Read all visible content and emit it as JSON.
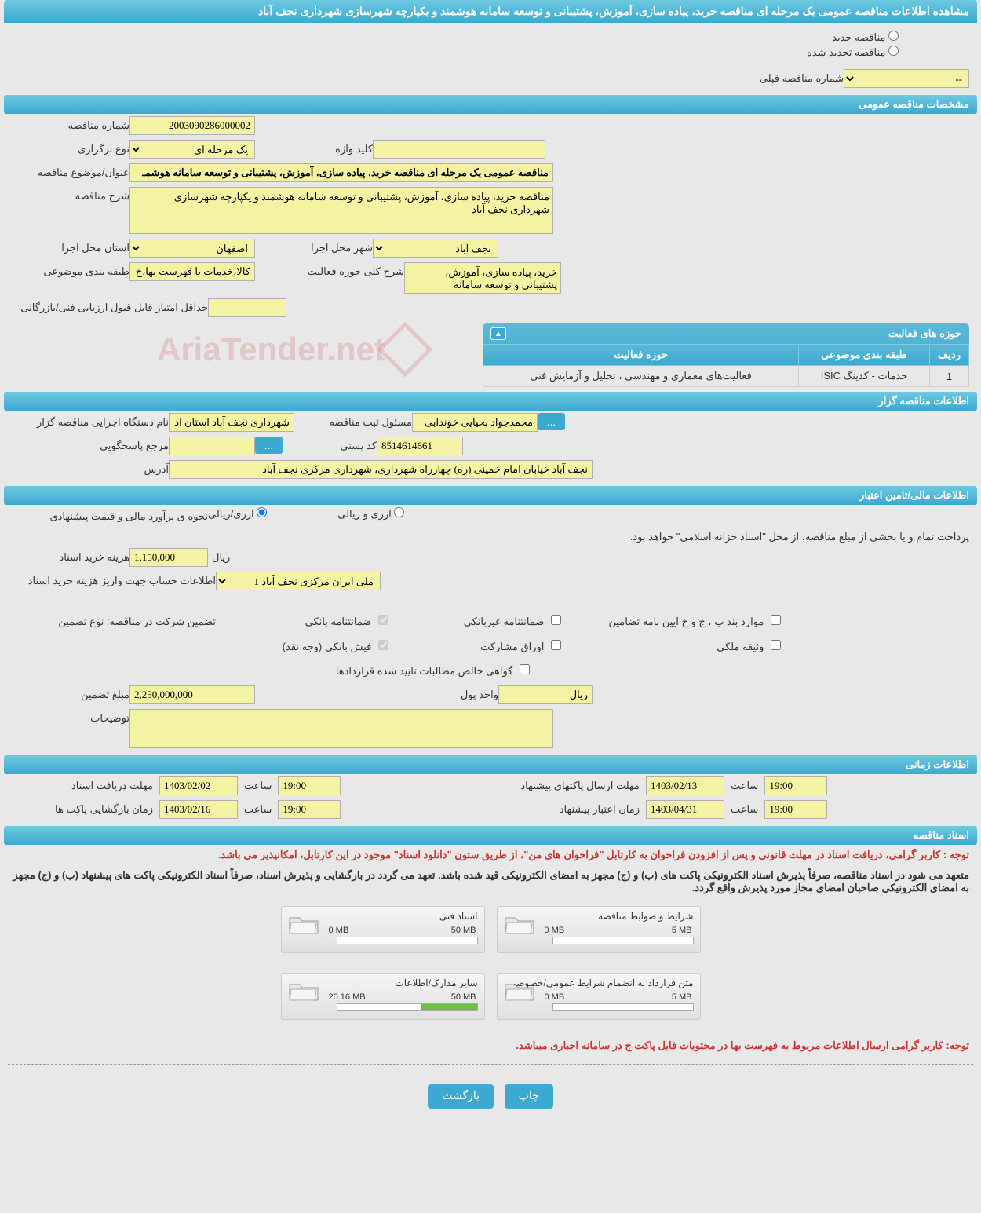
{
  "page_title": "مشاهده اطلاعات مناقصه عمومی یک مرحله ای مناقصه خرید، پیاده سازی، آموزش، پشتیبانی و توسعه سامانه هوشمند و یکپارچه شهرسازی شهرداری نجف آباد",
  "radios": {
    "new_tender": "مناقصه جدید",
    "renewed_tender": "مناقصه تجدید شده",
    "prev_number_label": "شماره مناقصه قبلی",
    "prev_number_value": "--"
  },
  "sec_general": "مشخصات مناقصه عمومی",
  "general": {
    "number_label": "شماره مناقصه",
    "number_value": "2003090286000002",
    "type_label": "نوع برگزاری",
    "type_value": "یک مرحله ای",
    "keyword_label": "کلید واژه",
    "keyword_value": "",
    "title_label": "عنوان/موضوع مناقصه",
    "title_value": "مناقصه عمومی یک مرحله ای مناقصه خرید، پیاده سازی، آموزش، پشتیبانی و توسعه سامانه هوشمـ",
    "desc_label": "شرح مناقصه",
    "desc_value": "مناقصه خرید، پیاده سازی، آموزش، پشتیبانی و توسعه سامانه هوشمند و یکپارچه شهرسازی شهرداری نجف آباد",
    "province_label": "استان محل اجرا",
    "province_value": "اصفهان",
    "city_label": "شهر محل اجرا",
    "city_value": "نجف آباد",
    "subject_class_label": "طبقه بندی موضوعی",
    "subject_class_value": "کالا،خدمات با فهرست بها،خ",
    "activity_desc_label": "شرح کلی حوزه فعالیت",
    "activity_desc_value": "خرید، پیاده سازی، آموزش، پشتیبانی و توسعه سامانه",
    "min_score_label": "حداقل امتیاز قابل قبول ارزیابی فنی/بازرگانی",
    "min_score_value": ""
  },
  "activities": {
    "header": "حوزه های فعالیت",
    "cols": {
      "row": "ردیف",
      "class": "طبقه بندی موضوعی",
      "area": "حوزه فعالیت"
    },
    "rows": [
      {
        "n": "1",
        "class": "خدمات - کدینگ ISIC",
        "area": "فعالیت‌های معماری و مهندسی ، تحلیل و آزمایش فنی"
      }
    ]
  },
  "sec_org": "اطلاعات مناقصه گزار",
  "org": {
    "org_label": "نام دستگاه اجرایی مناقصه گزار",
    "org_value": "شهرداری نجف آباد استان اد",
    "reg_officer_label": "مسئول ثبت مناقصه",
    "reg_officer_value": "محمدجواد بحیایی خوندابی",
    "phone_label": "مرجع پاسخگویی",
    "phone_value": "",
    "postal_label": "کد پستی",
    "postal_value": "8514614661",
    "address_label": "آدرس",
    "address_value": "نجف آباد خیابان امام خمینی (ره) چهارراه شهرداری، شهرداری مرکزی نجف آباد"
  },
  "sec_finance": "اطلاعات مالی/تامین اعتبار",
  "finance": {
    "estimate_label": "نحوه ی برآورد مالی و قیمت پیشنهادی",
    "opt_rial": "ارزی/ریالی",
    "opt_both": "ارزی و ریالی",
    "payment_note": "پرداخت تمام و یا بخشی از مبلغ مناقصه، از محل \"اسناد خزانه اسلامی\" خواهد بود.",
    "doc_fee_label": "هزینه خرید اسناد",
    "doc_fee_value": "1,150,000",
    "unit_rial": "ریال",
    "account_label": "اطلاعات حساب جهت واریز هزینه خرید اسناد",
    "account_value": "ملی ایران مرکزی نجف آباد 1",
    "guarantee_type_label": "تضمین شرکت در مناقصه:    نوع تضمین",
    "g1": "ضمانتنامه بانکی",
    "g2": "ضمانتنامه غیربانکی",
    "g3": "موارد بند ب ، ج و خ آیین نامه تضامین",
    "g4": "فیش بانکی (وجه نقد)",
    "g5": "اوراق مشارکت",
    "g6": "وثیقه ملکی",
    "g7": "گواهی خالص مطالبات تایید شده قراردادها",
    "guarantee_amount_label": "مبلغ تضمین",
    "guarantee_amount_value": "2,250,000,000",
    "currency_label": "واحد پول",
    "currency_value": "ریال",
    "notes_label": "توضیحات",
    "notes_value": ""
  },
  "sec_time": "اطلاعات زمانی",
  "time": {
    "time_label": "ساعت",
    "r1_label": "مهلت دریافت اسناد",
    "r1_date": "1403/02/02",
    "r1_time": "19:00",
    "r2_label": "مهلت ارسال پاکتهای پیشنهاد",
    "r2_date": "1403/02/13",
    "r2_time": "19:00",
    "r3_label": "زمان بازگشایی پاکت ها",
    "r3_date": "1403/02/16",
    "r3_time": "19:00",
    "r4_label": "زمان اعتبار پیشنهاد",
    "r4_date": "1403/04/31",
    "r4_time": "19:00"
  },
  "sec_docs": "اسناد مناقصه",
  "docs": {
    "note1": "توجه : کاربر گرامی، دریافت اسناد در مهلت قانونی و پس از افزودن فراخوان به کارتابل \"فراخوان های من\"، از طریق ستون \"دانلود اسناد\" موجود در این کارتابل، امکانپذیر می باشد.",
    "note2": "متعهد می شود در اسناد مناقصه، صرفاً پذیرش اسناد الکترونیکی پاکت های (ب) و (ج) مجهز به امضای الکترونیکی قید شده باشد. تعهد می گردد در بارگشایی و پذیرش اسناد، صرفاً اسناد الکترونیکی پاکت های پیشنهاد (ب) و (ج) مجهز به امضای الکترونیکی صاحبان امضای مجاز مورد پذیرش واقع گردد.",
    "cards": [
      {
        "title": "شرایط و ضوابط مناقصه",
        "used": "0 MB",
        "max": "5 MB",
        "pct": 0
      },
      {
        "title": "اسناد فنی",
        "used": "0 MB",
        "max": "50 MB",
        "pct": 0
      },
      {
        "title": "متن قرارداد به انضمام شرایط عمومی/خصوصی",
        "used": "0 MB",
        "max": "5 MB",
        "pct": 0
      },
      {
        "title": "سایر مدارک/اطلاعات",
        "used": "20.16 MB",
        "max": "50 MB",
        "pct": 40
      }
    ],
    "note3": "توجه: کاربر گرامی ارسال اطلاعات مربوط به فهرست بها در محتویات فایل پاکت ج در سامانه اجباری میباشد."
  },
  "buttons": {
    "print": "چاپ",
    "back": "بازگشت"
  },
  "watermark": "AriaTender.net",
  "colors": {
    "header_bg": "#3ba9d0",
    "yellow": "#f4f2a3",
    "red_note": "#cc3333"
  }
}
